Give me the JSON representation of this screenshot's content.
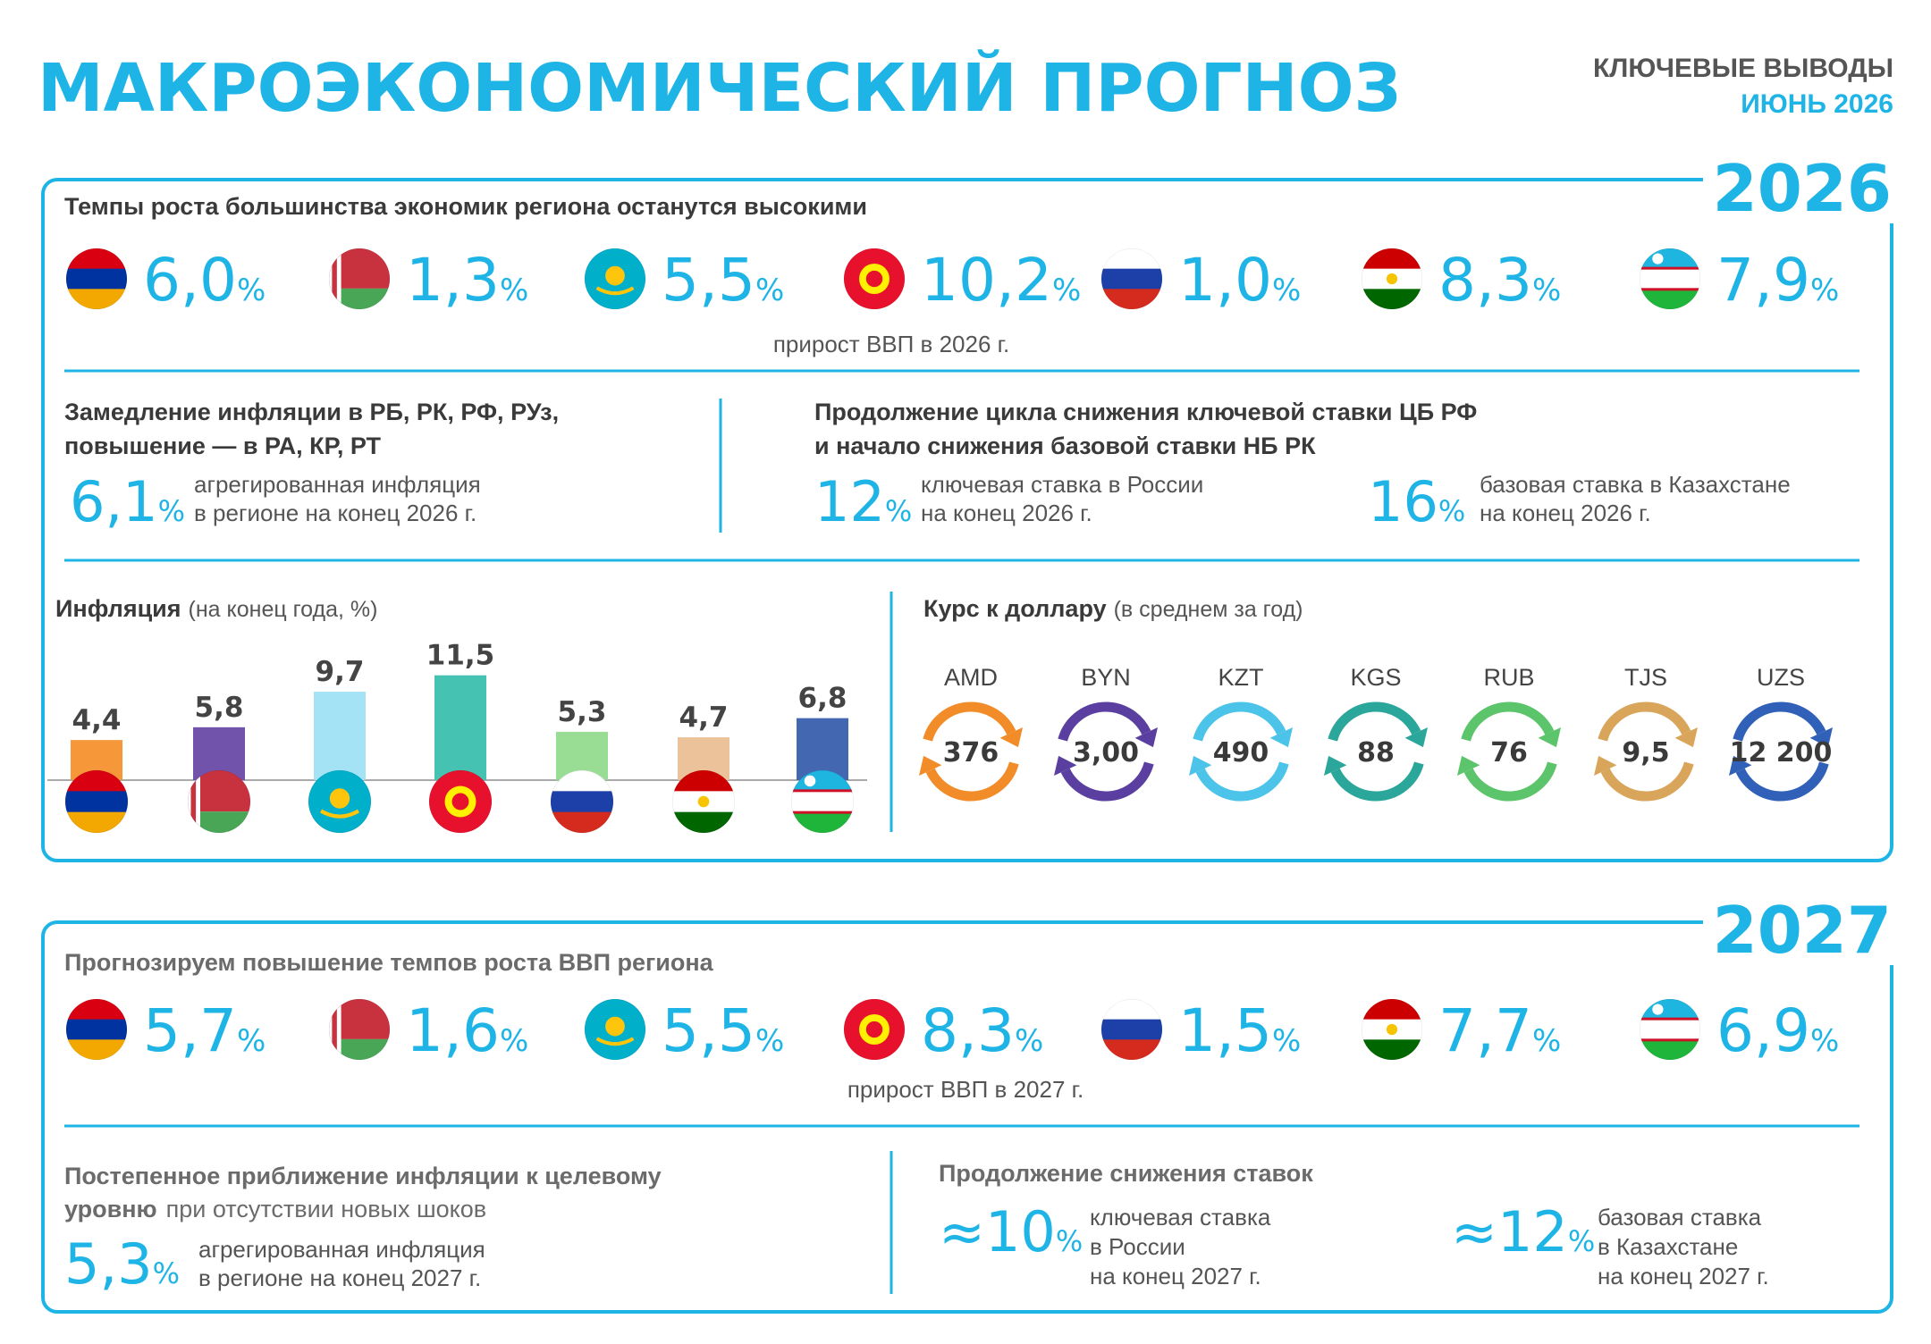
{
  "header": {
    "title": "МАКРОЭКОНОМИЧЕСКИЙ ПРОГНОЗ",
    "subtitle": "КЛЮЧЕВЫЕ ВЫВОДЫ",
    "date": "ИЮНЬ 2026"
  },
  "unit": "%",
  "y2026": {
    "year": "2026",
    "gdp": {
      "heading": "Темпы роста большинства экономик региона останутся высокими",
      "values": [
        "6,0",
        "1,3",
        "5,5",
        "10,2",
        "1,0",
        "8,3",
        "7,9"
      ],
      "caption": "прирост ВВП в 2026 г."
    },
    "inflation": {
      "heading": [
        "Замедление инфляции в РБ, РК, РФ, РУз,",
        "повышение — в РА, КР, РТ"
      ],
      "value": "6,1",
      "description": [
        "агрегированная инфляция",
        "в регионе на конец 2026 г."
      ]
    },
    "rates": {
      "heading": [
        "Продолжение цикла снижения ключевой ставки ЦБ РФ",
        "и начало снижения базовой ставки НБ РК"
      ],
      "items": [
        {
          "value": "12",
          "description": [
            "ключевая ставка в России",
            "на конец 2026 г."
          ]
        },
        {
          "value": "16",
          "description": [
            "базовая ставка в Казахстане",
            "на конец 2026 г."
          ]
        }
      ]
    },
    "exchange": {
      "title": "Курс к доллару",
      "subtitle": "(в среднем за год)",
      "items": [
        {
          "code": "AMD",
          "value": "376",
          "color": "#f28c28"
        },
        {
          "code": "BYN",
          "value": "3,00",
          "color": "#5b3fa0"
        },
        {
          "code": "KZT",
          "value": "490",
          "color": "#4cc3e8"
        },
        {
          "code": "KGS",
          "value": "88",
          "color": "#2aa69a"
        },
        {
          "code": "RUB",
          "value": "76",
          "color": "#5cc46a"
        },
        {
          "code": "TJS",
          "value": "9,5",
          "color": "#d9a55a"
        },
        {
          "code": "UZS",
          "value": "12 200",
          "color": "#3060b8"
        }
      ]
    }
  },
  "chart_data": {
    "type": "bar",
    "title": "Инфляция",
    "subtitle": "(на конец года, %)",
    "values": [
      4.4,
      5.8,
      9.7,
      11.5,
      5.3,
      4.7,
      6.8
    ],
    "value_labels": [
      "4,4",
      "5,8",
      "9,7",
      "11,5",
      "5,3",
      "4,7",
      "6,8"
    ],
    "colors": [
      "#f5922f",
      "#6a4aa8",
      "#9fe0f4",
      "#3bbfae",
      "#93db8f",
      "#eabf93",
      "#3a5fae"
    ]
  },
  "y2027": {
    "year": "2027",
    "gdp": {
      "heading": "Прогнозируем повышение темпов роста ВВП региона",
      "values": [
        "5,7",
        "1,6",
        "5,5",
        "8,3",
        "1,5",
        "7,7",
        "6,9"
      ],
      "caption": "прирост ВВП в 2027 г."
    },
    "inflation": {
      "heading": [
        "Постепенное приближение инфляции к целевому",
        "уровню",
        "при отсутствии новых шоков"
      ],
      "value": "5,3",
      "description": [
        "агрегированная инфляция",
        "в регионе на конец 2027 г."
      ]
    },
    "rates": {
      "heading": [
        "Продолжение снижения ставок"
      ],
      "items": [
        {
          "value": "≈10",
          "description": [
            "ключевая ставка",
            "в России",
            "на конец 2027 г."
          ]
        },
        {
          "value": "≈12",
          "description": [
            "базовая ставка",
            "в Казахстане",
            "на конец 2027 г."
          ]
        }
      ]
    }
  }
}
